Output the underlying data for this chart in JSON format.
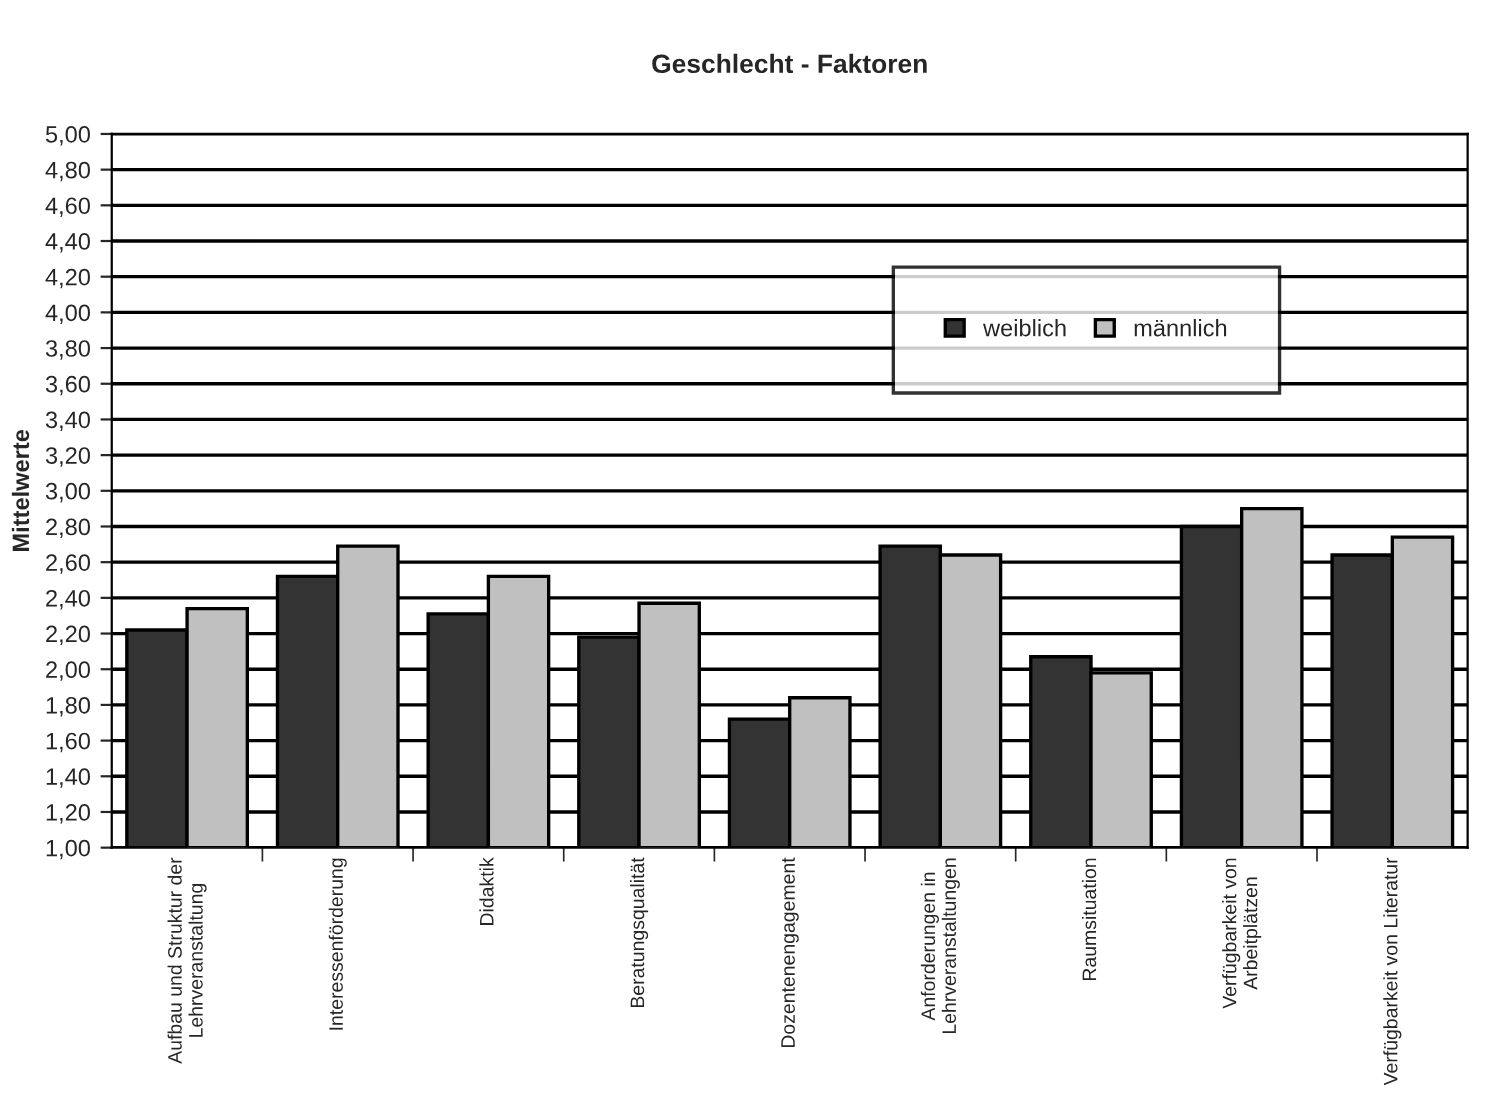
{
  "chart_data": {
    "type": "bar",
    "title": "Geschlecht - Faktoren",
    "ylabel": "Mittelwerte",
    "categories": [
      "Aufbau und Struktur der\nLehrveranstaltung",
      "Interessenförderung",
      "Didaktik",
      "Beratungsqualität",
      "Dozentenengagement",
      "Anforderungen in\nLehrveranstaltungen",
      "Raumsituation",
      "Verfügbarkeit von\nArbeitplätzen",
      "Verfügbarkeit von Literatur"
    ],
    "series": [
      {
        "name": "weiblich",
        "color": "#333333",
        "values": [
          2.22,
          2.52,
          2.31,
          2.18,
          1.72,
          2.69,
          2.07,
          2.8,
          2.64
        ]
      },
      {
        "name": "männlich",
        "color": "#c0c0c0",
        "values": [
          2.34,
          2.69,
          2.52,
          2.37,
          1.84,
          2.64,
          1.98,
          2.9,
          2.74
        ]
      }
    ],
    "ylim": [
      1.0,
      5.0
    ],
    "yticks": [
      {
        "value": 1.0,
        "label": "1,00"
      },
      {
        "value": 1.2,
        "label": "1,20"
      },
      {
        "value": 1.4,
        "label": "1,40"
      },
      {
        "value": 1.6,
        "label": "1,60"
      },
      {
        "value": 1.8,
        "label": "1,80"
      },
      {
        "value": 2.0,
        "label": "2,00"
      },
      {
        "value": 2.2,
        "label": "2,20"
      },
      {
        "value": 2.4,
        "label": "2,40"
      },
      {
        "value": 2.6,
        "label": "2,60"
      },
      {
        "value": 2.8,
        "label": "2,80"
      },
      {
        "value": 3.0,
        "label": "3,00"
      },
      {
        "value": 3.2,
        "label": "3,20"
      },
      {
        "value": 3.4,
        "label": "3,40"
      },
      {
        "value": 3.6,
        "label": "3,60"
      },
      {
        "value": 3.8,
        "label": "3,80"
      },
      {
        "value": 4.0,
        "label": "4,00"
      },
      {
        "value": 4.2,
        "label": "4,20"
      },
      {
        "value": 4.4,
        "label": "4,40"
      },
      {
        "value": 4.6,
        "label": "4,60"
      },
      {
        "value": 4.8,
        "label": "4,80"
      },
      {
        "value": 5.0,
        "label": "5,00"
      }
    ],
    "grid": "y",
    "legend": "top right"
  }
}
